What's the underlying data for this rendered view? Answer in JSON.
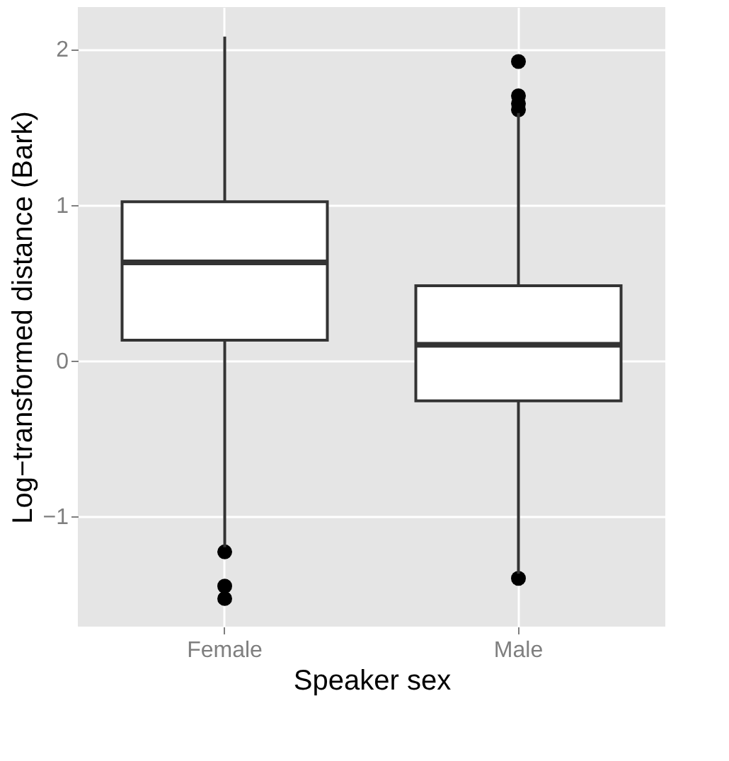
{
  "chart_data": {
    "type": "box",
    "xlabel": "Speaker sex",
    "ylabel": "Log−transformed distance (Bark)",
    "categories": [
      "Female",
      "Male"
    ],
    "boxes": [
      {
        "low": -1.2,
        "q1": 0.13,
        "median": 0.63,
        "q3": 1.02,
        "high": 2.08,
        "outliers": [
          -1.23,
          -1.45,
          -1.53
        ]
      },
      {
        "low": -1.37,
        "q1": -0.26,
        "median": 0.1,
        "q3": 0.48,
        "high": 1.59,
        "outliers": [
          1.92,
          1.7,
          1.65,
          1.61,
          -1.4
        ]
      }
    ],
    "ylim": [
      -1.71,
      2.27
    ],
    "yticks": [
      {
        "value": -1,
        "label": "−1"
      },
      0,
      1,
      2
    ],
    "grid": true
  }
}
